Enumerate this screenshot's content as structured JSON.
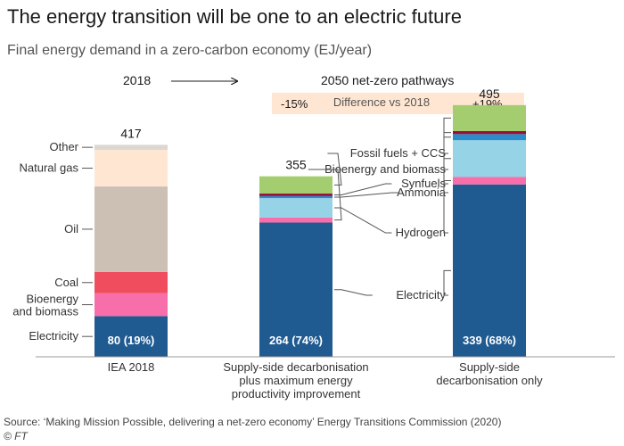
{
  "title": "The energy transition will be one to an electric future",
  "subtitle": "Final energy demand in a zero-carbon economy (EJ/year)",
  "header": {
    "from_year": "2018",
    "to_label": "2050 net-zero pathways",
    "diff_label": "Difference vs 2018",
    "diff_left": "-15%",
    "diff_right": "+19%"
  },
  "source": "Source: ‘Making Mission Possible, delivering a net-zero economy’ Energy Transitions Commission (2020)",
  "copyright": "© FT",
  "chart_data": {
    "type": "bar",
    "stacked": true,
    "categories": [
      "IEA 2018",
      "Supply-side decarbonisation plus maximum energy productivity improvement",
      "Supply-side decarbonisation only"
    ],
    "category_lines": [
      [
        "IEA 2018"
      ],
      [
        "Supply-side decarbonisation",
        "plus maximum energy",
        "productivity improvement"
      ],
      [
        "Supply-side",
        "decarbonisation only"
      ]
    ],
    "totals": [
      "417",
      "355",
      "495"
    ],
    "electricity_labels": [
      "80 (19%)",
      "264 (74%)",
      "339 (68%)"
    ],
    "ylim": [
      0,
      500
    ],
    "series": [
      {
        "name": "Electricity",
        "color": "#1f5a91",
        "values": [
          80,
          264,
          339
        ]
      },
      {
        "name": "Bioenergy and biomass",
        "color": "#f76eab",
        "values": [
          45,
          10,
          15
        ]
      },
      {
        "name": "Coal",
        "color": "#f04e5e",
        "values": [
          42,
          0,
          0
        ]
      },
      {
        "name": "Oil",
        "color": "#cbc0b3",
        "values": [
          168,
          0,
          0
        ]
      },
      {
        "name": "Natural gas",
        "color": "#ffe6d2",
        "values": [
          72,
          0,
          0
        ]
      },
      {
        "name": "Other",
        "color": "#ddd7d2",
        "values": [
          10,
          0,
          0
        ]
      },
      {
        "name": "Hydrogen",
        "color": "#96d3e6",
        "values": [
          0,
          38,
          72
        ]
      },
      {
        "name": "Ammonia",
        "color": "#2a8cc8",
        "values": [
          0,
          4,
          12
        ]
      },
      {
        "name": "Synfuels",
        "color": "#990f3d",
        "values": [
          0,
          5,
          6
        ]
      },
      {
        "name": "Fossil fuels + CCS",
        "color": "#a3cd6e",
        "values": [
          0,
          34,
          51
        ]
      }
    ],
    "left_labels": [
      {
        "text": "Other",
        "series": "Other"
      },
      {
        "text": "Natural gas",
        "series": "Natural gas"
      },
      {
        "text": "Oil",
        "series": "Oil"
      },
      {
        "text": "Coal",
        "series": "Coal"
      },
      {
        "text": "Bioenergy",
        "series": "Bioenergy and biomass",
        "line": 0
      },
      {
        "text": "and biomass",
        "series": "Bioenergy and biomass",
        "line": 1
      },
      {
        "text": "Electricity",
        "series": "Electricity"
      }
    ],
    "callouts": [
      {
        "text": "Fossil fuels + CCS",
        "series": "Fossil fuels + CCS"
      },
      {
        "text": "Bioenergy and biomass",
        "series": "Bioenergy and biomass"
      },
      {
        "text": "Synfuels",
        "series": "Synfuels"
      },
      {
        "text": "Ammonia",
        "series": "Ammonia"
      },
      {
        "text": "Hydrogen",
        "series": "Hydrogen"
      },
      {
        "text": "Electricity",
        "series": "Electricity"
      }
    ]
  }
}
